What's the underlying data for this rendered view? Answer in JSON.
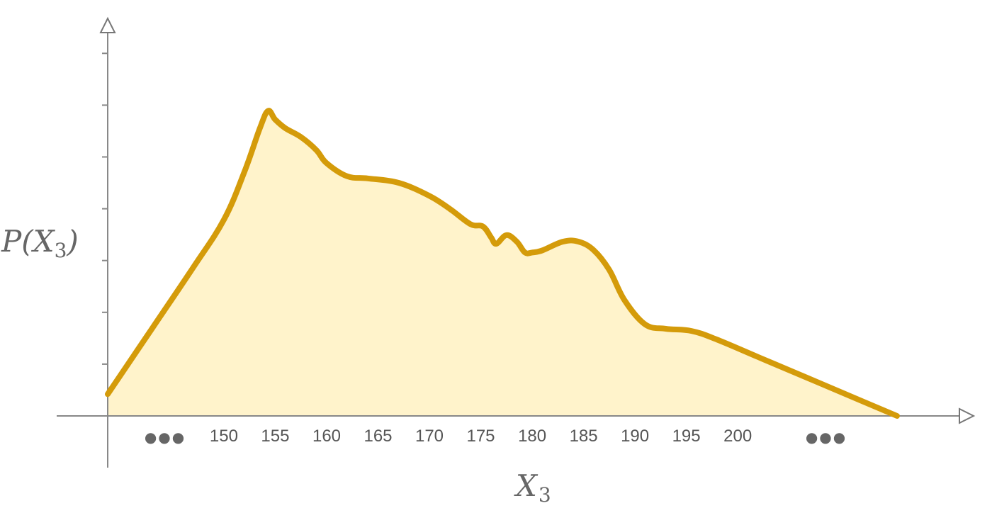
{
  "chart_data": {
    "type": "area",
    "title": "",
    "xlabel": "X",
    "xlabel_sub": "3",
    "ylabel_prefix": "P(",
    "ylabel_var": "X",
    "ylabel_sub": "3",
    "ylabel_suffix": ")",
    "x_ticks": [
      "150",
      "155",
      "160",
      "165",
      "170",
      "175",
      "180",
      "185",
      "190",
      "195",
      "200"
    ],
    "x_tick_values": [
      150,
      155,
      160,
      165,
      170,
      175,
      180,
      185,
      190,
      195,
      200
    ],
    "ellipsis_left": "●●●",
    "ellipsis_right": "●●●",
    "y_tick_count": 7,
    "xlim": [
      138.7,
      215.5
    ],
    "ylim": [
      0,
      8
    ],
    "grid": false,
    "legend": "none",
    "curve_color": "#D49B0A",
    "fill_color": "#FFF3CB",
    "axis_color": "#888888",
    "series": [
      {
        "x": [
          138.7,
          143,
          147,
          150,
          152,
          153.5,
          154.3,
          155,
          156,
          157.5,
          159,
          160,
          162,
          164,
          167,
          170,
          172,
          174,
          175.2,
          176,
          176.5,
          177.5,
          178.5,
          179.3,
          180,
          181,
          183,
          184.5,
          186,
          187.5,
          189,
          191,
          193,
          195.5,
          198,
          202,
          207,
          212,
          215.5
        ],
        "y": [
          0.5,
          2.0,
          3.4,
          4.5,
          5.6,
          6.6,
          7.0,
          6.8,
          6.6,
          6.4,
          6.1,
          5.8,
          5.5,
          5.45,
          5.35,
          5.05,
          4.75,
          4.4,
          4.35,
          4.1,
          3.95,
          4.15,
          4.0,
          3.75,
          3.75,
          3.8,
          4.0,
          4.0,
          3.8,
          3.35,
          2.65,
          2.1,
          2.0,
          1.95,
          1.75,
          1.35,
          0.85,
          0.35,
          0.0
        ]
      }
    ]
  }
}
